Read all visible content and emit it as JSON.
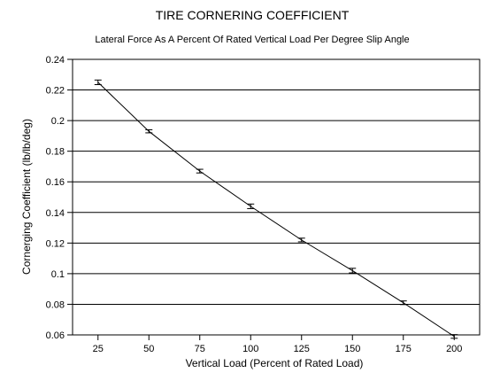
{
  "chart_data": {
    "type": "line",
    "title": "TIRE CORNERING COEFFICIENT",
    "subtitle": "Lateral Force As A Percent Of Rated Vertical Load Per Degree Slip Angle",
    "xlabel": "Vertical Load (Percent of Rated Load)",
    "ylabel": "Cornerging Coefficient (lb/lb/deg)",
    "xlim": [
      12.5,
      212.5
    ],
    "ylim": [
      0.06,
      0.24
    ],
    "xticks": [
      25,
      50,
      75,
      100,
      125,
      150,
      175,
      200
    ],
    "yticks": [
      0.06,
      0.08,
      0.1,
      0.12,
      0.14,
      0.16,
      0.18,
      0.2,
      0.22,
      0.24
    ],
    "xtick_labels": [
      "25",
      "50",
      "75",
      "100",
      "125",
      "150",
      "175",
      "200"
    ],
    "ytick_labels": [
      "0.06",
      "0.08",
      "0.1",
      "0.12",
      "0.14",
      "0.16",
      "0.18",
      "0.2",
      "0.22",
      "0.24"
    ],
    "grid": "horizontal",
    "legend": "none",
    "series": [
      {
        "x": [
          25,
          50,
          75,
          100,
          125,
          150,
          175,
          200
        ],
        "y": [
          0.225,
          0.193,
          0.167,
          0.144,
          0.122,
          0.102,
          0.081,
          0.059
        ],
        "error": [
          0.0015,
          0.001,
          0.0012,
          0.0015,
          0.0012,
          0.0015,
          0.0012,
          0.0012
        ],
        "color": "#000000",
        "show_markers": "error-bars"
      }
    ]
  }
}
